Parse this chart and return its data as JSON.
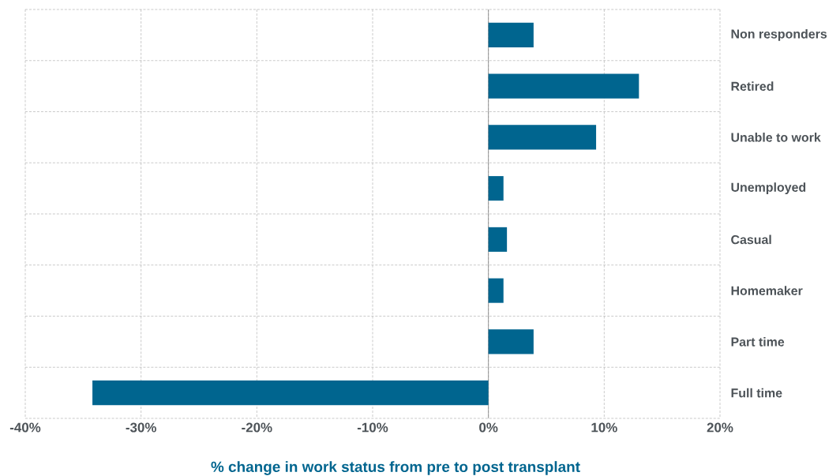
{
  "chart_data": {
    "type": "bar",
    "orientation": "horizontal",
    "xlabel": "% change in work status from pre to post transplant",
    "categories": [
      "Non responders",
      "Retired",
      "Unable to work",
      "Unemployed",
      "Casual",
      "Homemaker",
      "Part time",
      "Full time"
    ],
    "values": [
      3.9,
      13.0,
      9.3,
      1.3,
      1.6,
      1.3,
      3.9,
      -34.2
    ],
    "color": "#00658f",
    "xlim": [
      -40,
      20
    ],
    "xticks": [
      {
        "value": -40,
        "label": "-40%"
      },
      {
        "value": -30,
        "label": "-30%"
      },
      {
        "value": -20,
        "label": "-20%"
      },
      {
        "value": -10,
        "label": "-10%"
      },
      {
        "value": 0,
        "label": "0%"
      },
      {
        "value": 10,
        "label": "10%"
      },
      {
        "value": 20,
        "label": "20%"
      }
    ],
    "grid": true
  }
}
